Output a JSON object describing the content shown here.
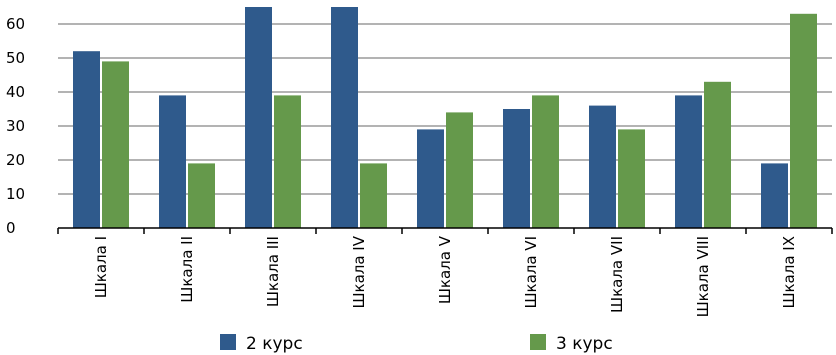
{
  "chart_data": {
    "type": "bar",
    "title": "",
    "xlabel": "",
    "ylabel": "",
    "categories": [
      "Шкала I",
      "Шкала II",
      "Шкала III",
      "Шкала IV",
      "Шкала V",
      "Шкала VI",
      "Шкала VII",
      "Шкала VIII",
      "Шкала IX"
    ],
    "series": [
      {
        "name": "2 курс",
        "color": "#2f5a8c",
        "values": [
          52,
          39,
          65,
          65,
          29,
          35,
          36,
          39,
          19
        ]
      },
      {
        "name": "3 курс",
        "color": "#65994b",
        "values": [
          49,
          19,
          39,
          19,
          34,
          39,
          29,
          43,
          63
        ]
      }
    ],
    "ylim": [
      0,
      65
    ],
    "yticks": [
      0,
      10,
      20,
      30,
      40,
      50,
      60
    ],
    "grid": true,
    "legend_position": "bottom"
  }
}
